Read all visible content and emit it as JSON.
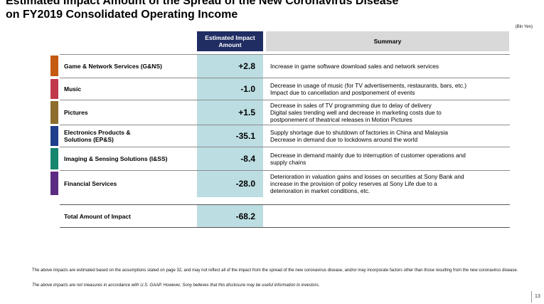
{
  "title": {
    "line1": "Estimated Impact Amount of the Spread of the New Coronavirus Disease",
    "line2": "on FY2019 Consolidated Operating Income"
  },
  "unit": "(Bln Yen)",
  "table": {
    "header_impact_line1": "Estimated Impact",
    "header_impact_line2": "Amount",
    "header_summary": "Summary",
    "rows": [
      {
        "segment": "Game & Network Services (G&NS)",
        "value": "+2.8",
        "color": "#c55a11",
        "summary": [
          "Increase in game software download sales and network services"
        ]
      },
      {
        "segment": "Music",
        "value": "-1.0",
        "color": "#c0394b",
        "summary": [
          "Decrease in usage of music (for TV advertisements, restaurants, bars, etc.)",
          "Impact due to cancellation and postponement of events"
        ]
      },
      {
        "segment": "Pictures",
        "value": "+1.5",
        "color": "#8c6d2c",
        "summary": [
          "Decrease in sales of TV programming due to delay of delivery",
          "Digital sales trending well and decrease in marketing costs due to",
          "postponement of theatrical releases in Motion Pictures"
        ]
      },
      {
        "segment_line1": "Electronics Products &",
        "segment_line2": "Solutions (EP&S)",
        "value": "-35.1",
        "color": "#1f3f8c",
        "summary": [
          "Supply shortage due to shutdown of factories in China and Malaysia",
          "Decrease in demand due to lockdowns around the world"
        ]
      },
      {
        "segment": "Imaging & Sensing Solutions (I&SS)",
        "value": "-8.4",
        "color": "#17866f",
        "summary": [
          "Decrease in demand mainly due to interruption of customer operations and",
          "supply chains"
        ]
      },
      {
        "segment": "Financial Services",
        "value": "-28.0",
        "color": "#5b2c82",
        "summary": [
          "Deterioration in valuation gains and losses on securities at Sony Bank and",
          "increase in the provision of policy reserves at Sony Life due to a",
          "deterioration in market conditions, etc."
        ]
      }
    ],
    "total": {
      "label": "Total Amount of Impact",
      "value": "-68.2"
    }
  },
  "notes": {
    "note1": "The above impacts are estimated based on the assumptions stated on page 32, and may not reflect all of the impact from the spread of the new coronavirus disease, and/or may incorporate factors other than those resulting from the new coronavirus disease.",
    "note2": "The above impacts are not measures in accordance with U.S. GAAP. However, Sony believes that this disclosure may be useful information to investors."
  },
  "page_number": "13"
}
